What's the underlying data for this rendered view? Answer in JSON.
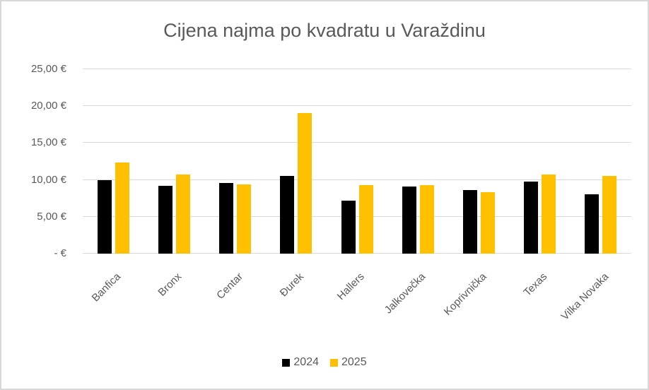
{
  "chart_data": {
    "type": "bar",
    "title": "Cijena najma po kvadratu u Varaždinu",
    "categories": [
      "Banfica",
      "Bronx",
      "Centar",
      "Đurek",
      "Hallers",
      "Jalkovečka",
      "Koprivnička",
      "Texas",
      "Vilka Novaka"
    ],
    "series": [
      {
        "name": "2024",
        "color": "#000000",
        "values": [
          10.0,
          9.2,
          9.6,
          10.5,
          7.2,
          9.1,
          8.6,
          9.8,
          8.0
        ]
      },
      {
        "name": "2025",
        "color": "#FFC000",
        "values": [
          12.4,
          10.75,
          9.4,
          19.1,
          9.25,
          9.25,
          8.3,
          10.75,
          10.5
        ]
      }
    ],
    "ylabel": "",
    "xlabel": "",
    "ylim": [
      0,
      25
    ],
    "ytick_step": 5,
    "ytick_labels": [
      "-  €",
      "5,00 €",
      "10,00 €",
      "15,00 €",
      "20,00 €",
      "25,00 €"
    ],
    "grid": true,
    "legend_position": "bottom",
    "currency_symbol": "€"
  },
  "style": {
    "text_color": "#595959",
    "gridline_color": "#D9D9D9",
    "background_color": "#FFFFFF",
    "border_color": "#D8D8D8",
    "series_2024_color": "#000000",
    "series_2025_color": "#FFC000"
  }
}
